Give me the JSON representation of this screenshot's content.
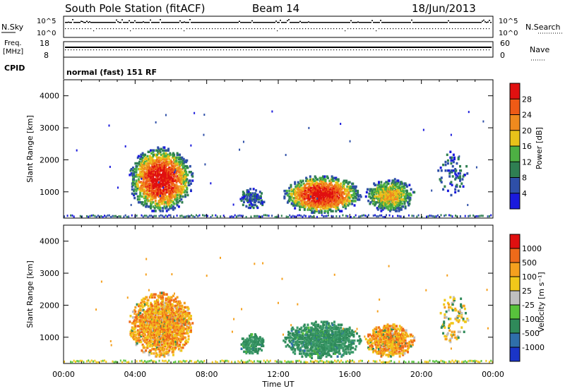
{
  "header": {
    "title": "South Pole Station (fitACF)",
    "beam": "Beam 14",
    "date": "18/Jun/2013"
  },
  "nsky": {
    "left_label": "N.Sky",
    "right_label": "N.Search",
    "y_top_tick": "10^5",
    "y_bottom_tick": "10^0"
  },
  "freq": {
    "left_label_line1": "Freq.",
    "left_label_line2": "[MHz]",
    "right_label": "Nave",
    "y_top_tick": "18",
    "y_bottom_tick": "8",
    "ry_top_tick": "60",
    "ry_bottom_tick": "0"
  },
  "cpid": {
    "label": "CPID",
    "text": "normal (fast) 151 RF"
  },
  "chart_data": [
    {
      "type": "heatmap",
      "panel": "power",
      "ylabel": "Slant Range [km]",
      "ylim": [
        180,
        4500
      ],
      "yticks": [
        1000,
        2000,
        3000,
        4000
      ],
      "xlim": [
        0,
        24
      ],
      "colorbar": {
        "label": "Power [dB]",
        "ticks": [
          "4",
          "8",
          "12",
          "16",
          "20",
          "24",
          "28"
        ],
        "colors": [
          "#1a1adc",
          "#2e4fa8",
          "#2f7f52",
          "#4db043",
          "#e8c21a",
          "#f08a1e",
          "#ee5a16",
          "#e01010"
        ]
      },
      "regions": [
        {
          "t0": 3.6,
          "t1": 7.2,
          "r0": 350,
          "r1": 2400,
          "kind": "strong"
        },
        {
          "t0": 9.8,
          "t1": 11.2,
          "r0": 450,
          "r1": 1100,
          "kind": "weak"
        },
        {
          "t0": 12.2,
          "t1": 16.6,
          "r0": 300,
          "r1": 1500,
          "kind": "strong"
        },
        {
          "t0": 16.8,
          "t1": 19.6,
          "r0": 350,
          "r1": 1400,
          "kind": "medium"
        },
        {
          "t0": 20.8,
          "t1": 22.6,
          "r0": 800,
          "r1": 2300,
          "kind": "sparse"
        }
      ]
    },
    {
      "type": "heatmap",
      "panel": "velocity",
      "ylabel": "Slant Range [km]",
      "ylim": [
        180,
        4500
      ],
      "yticks": [
        1000,
        2000,
        3000,
        4000
      ],
      "xlim": [
        0,
        24
      ],
      "xticks": [
        "00:00",
        "04:00",
        "08:00",
        "12:00",
        "16:00",
        "20:00",
        "00:00"
      ],
      "xlabel": "Time UT",
      "colorbar": {
        "label": "Velocity [m s⁻¹]",
        "ticks": [
          "1000",
          "500",
          "100",
          "25",
          "-25",
          "-100",
          "-500",
          "-1000"
        ],
        "colors": [
          "#1a35c8",
          "#2f6faa",
          "#2f8a5a",
          "#58c33c",
          "#bfbfbf",
          "#f0c81a",
          "#f5a01e",
          "#ee6a1a",
          "#e01010"
        ]
      },
      "regions": [
        {
          "t0": 3.6,
          "t1": 7.2,
          "r0": 350,
          "r1": 2400,
          "kind": "orange"
        },
        {
          "t0": 9.8,
          "t1": 11.2,
          "r0": 450,
          "r1": 1100,
          "kind": "green"
        },
        {
          "t0": 12.2,
          "t1": 16.6,
          "r0": 300,
          "r1": 1500,
          "kind": "green"
        },
        {
          "t0": 16.8,
          "t1": 19.6,
          "r0": 350,
          "r1": 1400,
          "kind": "orange"
        },
        {
          "t0": 20.8,
          "t1": 22.6,
          "r0": 800,
          "r1": 2300,
          "kind": "sparse"
        }
      ]
    }
  ]
}
